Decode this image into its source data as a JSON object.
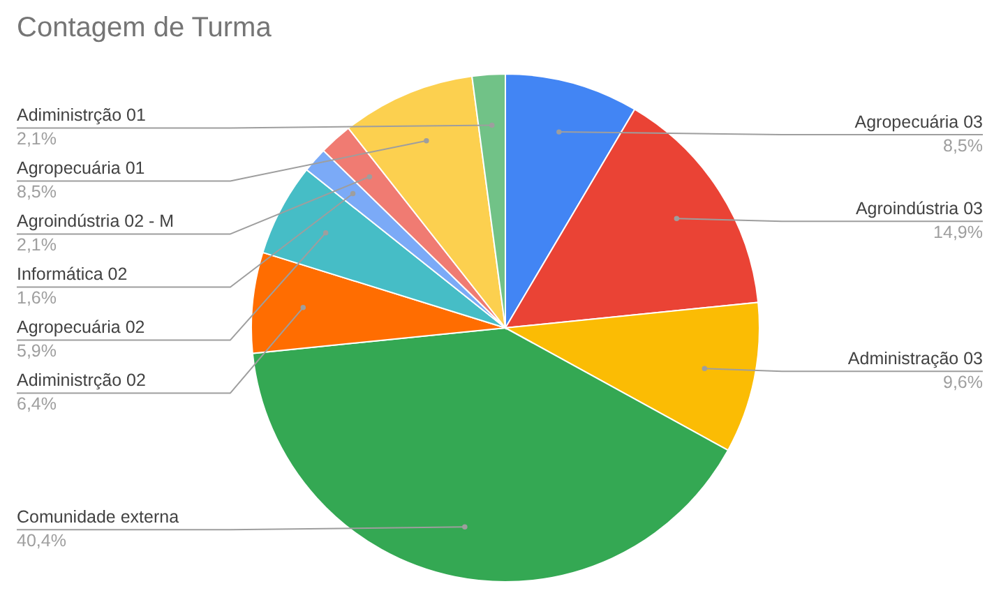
{
  "chart_data": {
    "type": "pie",
    "title": "Contagem de Turma",
    "categories": [
      "Agropecuária 03",
      "Agroindústria 03",
      "Administração 03",
      "Comunidade externa",
      "Adiministrção 02",
      "Agropecuária 02",
      "Informática 02",
      "Agroindústria 02 - M",
      "Agropecuária 01",
      "Adiministrção 01"
    ],
    "values": [
      8.5,
      14.9,
      9.6,
      40.4,
      6.4,
      5.9,
      1.6,
      2.1,
      8.5,
      2.1
    ],
    "value_labels": [
      "8,5%",
      "14,9%",
      "9,6%",
      "40,4%",
      "6,4%",
      "5,9%",
      "1,6%",
      "2,1%",
      "8,5%",
      "2,1%"
    ],
    "colors": [
      "#4285f4",
      "#ea4335",
      "#fbbc04",
      "#34a853",
      "#ff6d01",
      "#46bdc6",
      "#7baaf7",
      "#f07b72",
      "#fcd04f",
      "#71c287"
    ]
  }
}
